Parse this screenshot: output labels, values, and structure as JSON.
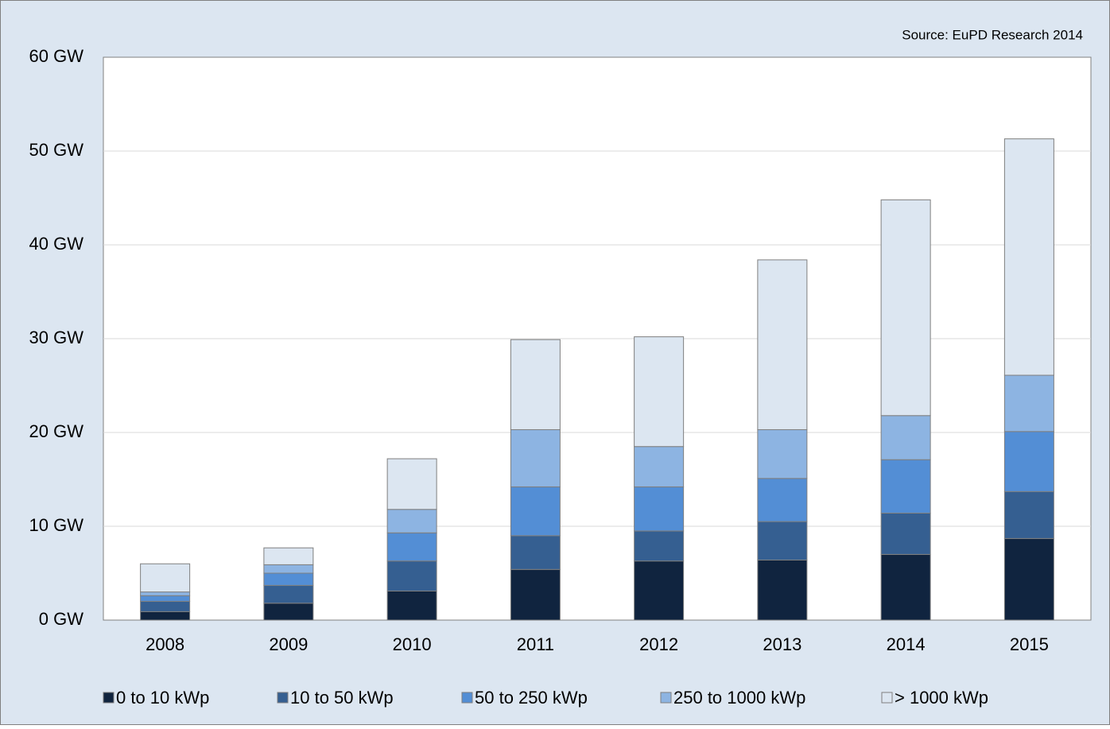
{
  "chart_data": {
    "type": "stacked_bar",
    "annotation": "Source: EuPD Research 2014",
    "categories": [
      "2008",
      "2009",
      "2010",
      "2011",
      "2012",
      "2013",
      "2014",
      "2015"
    ],
    "series": [
      {
        "name": "0 to 10 kWp",
        "color": "#10243f",
        "values": [
          0.9,
          1.8,
          3.1,
          5.4,
          6.3,
          6.4,
          7.0,
          8.7
        ]
      },
      {
        "name": "10 to 50 kWp",
        "color": "#355f91",
        "values": [
          1.1,
          1.9,
          3.2,
          3.6,
          3.2,
          4.1,
          4.4,
          5.0
        ]
      },
      {
        "name": "50 to 250 kWp",
        "color": "#538ed5",
        "values": [
          0.6,
          1.3,
          3.0,
          5.2,
          4.7,
          4.6,
          5.7,
          6.4
        ]
      },
      {
        "name": "250 to 1000 kWp",
        "color": "#8db4e2",
        "values": [
          0.4,
          0.9,
          2.5,
          6.1,
          4.3,
          5.2,
          4.7,
          6.0
        ]
      },
      {
        "name": "> 1000 kWp",
        "color": "#dce6f1",
        "values": [
          3.0,
          1.8,
          5.4,
          9.6,
          11.7,
          18.1,
          23.0,
          25.2
        ]
      }
    ],
    "ylim": [
      0,
      60
    ],
    "yticks": [
      {
        "value": 0,
        "label": "0 GW"
      },
      {
        "value": 10,
        "label": "10 GW"
      },
      {
        "value": 20,
        "label": "20 GW"
      },
      {
        "value": 30,
        "label": "30 GW"
      },
      {
        "value": 40,
        "label": "40 GW"
      },
      {
        "value": 50,
        "label": "50 GW"
      },
      {
        "value": 60,
        "label": "60 GW"
      }
    ],
    "grid": true
  }
}
